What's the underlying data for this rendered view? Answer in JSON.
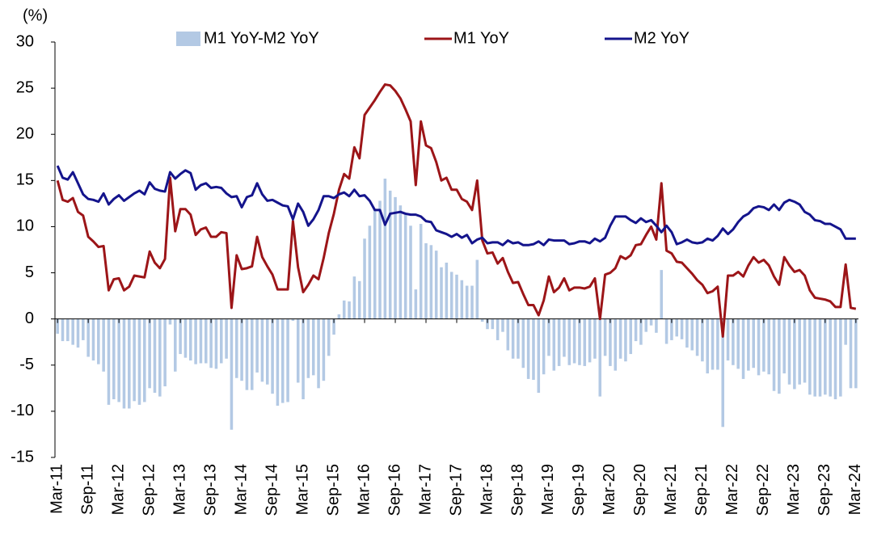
{
  "chart_data": {
    "type": "bar-line",
    "y_unit": "(%)",
    "legend": "top",
    "grid": false,
    "categories": [
      "Mar-11",
      null,
      null,
      null,
      null,
      null,
      "Sep-11",
      null,
      null,
      null,
      null,
      null,
      "Mar-12",
      null,
      null,
      null,
      null,
      null,
      "Sep-12",
      null,
      null,
      null,
      null,
      null,
      "Mar-13",
      null,
      null,
      null,
      null,
      null,
      "Sep-13",
      null,
      null,
      null,
      null,
      null,
      "Mar-14",
      null,
      null,
      null,
      null,
      null,
      "Sep-14",
      null,
      null,
      null,
      null,
      null,
      "Mar-15",
      null,
      null,
      null,
      null,
      null,
      "Sep-15",
      null,
      null,
      null,
      null,
      null,
      "Mar-16",
      null,
      null,
      null,
      null,
      null,
      "Sep-16",
      null,
      null,
      null,
      null,
      null,
      "Mar-17",
      null,
      null,
      null,
      null,
      null,
      "Sep-17",
      null,
      null,
      null,
      null,
      null,
      "Mar-18",
      null,
      null,
      null,
      null,
      null,
      "Sep-18",
      null,
      null,
      null,
      null,
      null,
      "Mar-19",
      null,
      null,
      null,
      null,
      null,
      "Sep-19",
      null,
      null,
      null,
      null,
      null,
      "Mar-20",
      null,
      null,
      null,
      null,
      null,
      "Sep-20",
      null,
      null,
      null,
      null,
      null,
      "Mar-21",
      null,
      null,
      null,
      null,
      null,
      "Sep-21",
      null,
      null,
      null,
      null,
      null,
      "Mar-22",
      null,
      null,
      null,
      null,
      null,
      "Sep-22",
      null,
      null,
      null,
      null,
      null,
      "Mar-23",
      null,
      null,
      null,
      null,
      null,
      "Sep-23",
      null,
      null,
      null,
      null,
      null,
      "Mar-24"
    ],
    "ylim": [
      -15,
      30
    ],
    "yticks": [
      -15,
      -10,
      -5,
      0,
      5,
      10,
      15,
      20,
      25,
      30
    ],
    "series": [
      {
        "name": "M1 YoY-M2 YoY",
        "type": "bar",
        "color": "#b3c9e4",
        "values": [
          -1.6,
          -2.4,
          -2.4,
          -2.8,
          -3.1,
          -2.3,
          -4.1,
          -4.5,
          -4.9,
          -5.7,
          -9.3,
          -8.7,
          -9.0,
          -9.7,
          -9.7,
          -8.9,
          -9.3,
          -9.0,
          -7.5,
          -8.0,
          -8.4,
          -7.3,
          -0.6,
          -5.7,
          -3.8,
          -4.2,
          -4.5,
          -4.9,
          -4.8,
          -4.8,
          -5.3,
          -5.4,
          -4.8,
          -4.3,
          -12.0,
          -6.4,
          -6.7,
          -7.7,
          -7.7,
          -5.8,
          -6.8,
          -7.1,
          -8.1,
          -9.4,
          -9.1,
          -9.0,
          -0.2,
          -6.9,
          -8.7,
          -6.4,
          -6.1,
          -7.5,
          -6.7,
          -4.0,
          -1.7,
          0.5,
          2.0,
          1.9,
          4.6,
          4.1,
          8.7,
          10.1,
          11.9,
          12.8,
          15.2,
          13.9,
          13.2,
          12.3,
          11.3,
          10.1,
          3.2,
          10.3,
          8.2,
          8.0,
          7.4,
          5.6,
          6.1,
          5.1,
          4.8,
          4.2,
          3.6,
          3.6,
          6.4,
          -0.3,
          -1.1,
          -1.1,
          -2.3,
          -1.4,
          -3.4,
          -4.3,
          -4.3,
          -5.3,
          -6.5,
          -6.6,
          -8.0,
          -6.0,
          -4.0,
          -5.6,
          -5.1,
          -4.1,
          -5.0,
          -4.8,
          -5.0,
          -5.1,
          -4.7,
          -4.3,
          -8.4,
          -4.0,
          -5.1,
          -5.6,
          -4.3,
          -4.6,
          -3.8,
          -2.4,
          -2.8,
          -1.4,
          -0.7,
          -1.5,
          5.3,
          -2.7,
          -2.3,
          -1.9,
          -2.2,
          -3.1,
          -3.4,
          -4.0,
          -4.6,
          -5.9,
          -5.5,
          -5.5,
          -11.7,
          -4.5,
          -5.0,
          -5.4,
          -6.5,
          -5.6,
          -5.3,
          -6.1,
          -5.7,
          -6.0,
          -7.8,
          -8.1,
          -5.9,
          -7.1,
          -7.6,
          -7.1,
          -6.9,
          -8.2,
          -8.4,
          -8.4,
          -8.2,
          -8.4,
          -8.7,
          -8.4,
          -2.8,
          -7.5,
          -7.5
        ]
      },
      {
        "name": "M1 YoY",
        "type": "line",
        "color": "#9c1518",
        "values": [
          15.0,
          12.9,
          12.7,
          13.1,
          11.6,
          11.2,
          8.9,
          8.4,
          7.8,
          7.9,
          3.1,
          4.3,
          4.4,
          3.1,
          3.5,
          4.7,
          4.6,
          4.5,
          7.3,
          6.1,
          5.5,
          6.5,
          15.3,
          9.5,
          11.9,
          11.9,
          11.3,
          9.1,
          9.7,
          9.9,
          8.9,
          8.9,
          9.4,
          9.3,
          1.2,
          6.9,
          5.4,
          5.5,
          5.7,
          8.9,
          6.7,
          5.7,
          4.8,
          3.2,
          3.2,
          3.2,
          10.6,
          5.6,
          2.9,
          3.7,
          4.7,
          4.3,
          6.6,
          9.3,
          11.4,
          14.0,
          15.7,
          15.2,
          18.6,
          17.4,
          22.1,
          22.9,
          23.7,
          24.6,
          25.4,
          25.3,
          24.7,
          23.9,
          22.7,
          21.4,
          14.5,
          21.4,
          18.8,
          18.5,
          17.0,
          15.0,
          15.3,
          14.0,
          14.0,
          13.0,
          12.7,
          11.8,
          15.0,
          8.5,
          7.1,
          7.2,
          6.0,
          6.6,
          5.1,
          3.9,
          4.0,
          2.7,
          1.5,
          1.5,
          0.4,
          2.0,
          4.6,
          2.9,
          3.4,
          4.4,
          3.1,
          3.4,
          3.4,
          3.3,
          3.5,
          4.4,
          0.0,
          4.8,
          5.0,
          5.5,
          6.8,
          6.5,
          6.9,
          8.0,
          8.1,
          9.1,
          10.0,
          8.6,
          14.7,
          7.4,
          7.1,
          6.2,
          6.1,
          5.5,
          4.9,
          4.2,
          3.7,
          2.8,
          3.0,
          3.5,
          -1.9,
          4.7,
          4.7,
          5.1,
          4.6,
          5.8,
          6.7,
          6.1,
          6.4,
          5.8,
          4.6,
          3.7,
          6.7,
          5.8,
          5.1,
          5.3,
          4.7,
          3.1,
          2.3,
          2.2,
          2.1,
          1.9,
          1.3,
          1.3,
          5.9,
          1.2,
          1.1
        ]
      },
      {
        "name": "M2 YoY",
        "type": "line",
        "color": "#14148c",
        "values": [
          16.6,
          15.3,
          15.1,
          15.9,
          14.7,
          13.5,
          13.0,
          12.9,
          12.7,
          13.6,
          12.4,
          13.0,
          13.4,
          12.8,
          13.2,
          13.6,
          13.9,
          13.5,
          14.8,
          14.1,
          13.9,
          13.8,
          15.9,
          15.2,
          15.7,
          16.1,
          15.8,
          14.0,
          14.5,
          14.7,
          14.2,
          14.3,
          14.2,
          13.6,
          13.2,
          13.3,
          12.1,
          13.2,
          13.4,
          14.7,
          13.5,
          12.8,
          12.9,
          12.6,
          12.3,
          12.2,
          10.8,
          12.5,
          11.6,
          10.1,
          10.8,
          11.8,
          13.3,
          13.3,
          13.1,
          13.5,
          13.7,
          13.3,
          14.0,
          13.3,
          13.4,
          12.8,
          11.8,
          11.8,
          10.2,
          11.4,
          11.5,
          11.6,
          11.4,
          11.3,
          11.3,
          11.1,
          10.6,
          10.5,
          9.6,
          9.4,
          9.2,
          8.9,
          9.2,
          8.8,
          9.1,
          8.2,
          8.6,
          8.8,
          8.2,
          8.3,
          8.3,
          8.0,
          8.5,
          8.2,
          8.3,
          8.0,
          8.0,
          8.1,
          8.4,
          8.0,
          8.6,
          8.5,
          8.5,
          8.5,
          8.1,
          8.2,
          8.4,
          8.4,
          8.2,
          8.7,
          8.4,
          8.8,
          10.1,
          11.1,
          11.1,
          11.1,
          10.7,
          10.4,
          10.9,
          10.5,
          10.7,
          10.1,
          9.4,
          10.1,
          9.4,
          8.1,
          8.3,
          8.6,
          8.3,
          8.2,
          8.3,
          8.7,
          8.5,
          9.0,
          9.8,
          9.2,
          9.7,
          10.5,
          11.1,
          11.4,
          12.0,
          12.2,
          12.1,
          11.8,
          12.4,
          11.8,
          12.6,
          12.9,
          12.7,
          12.4,
          11.6,
          11.3,
          10.7,
          10.6,
          10.3,
          10.3,
          10.0,
          9.7,
          8.7,
          8.7,
          8.7
        ]
      }
    ]
  }
}
